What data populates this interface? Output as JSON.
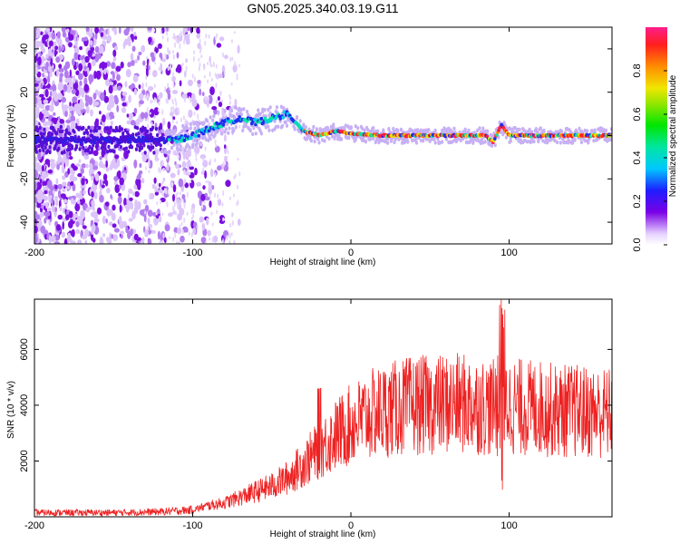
{
  "title": "GN05.2025.340.03.19.G11",
  "chart_data": [
    {
      "type": "heatmap",
      "xlabel": "Height of straight line (km)",
      "ylabel": "Frequency (Hz)",
      "xlim": [
        -200,
        165
      ],
      "ylim": [
        -50,
        50
      ],
      "xticks": [
        -200,
        -100,
        0,
        100
      ],
      "xtick_labels": [
        "-200",
        "-100",
        "0",
        "100"
      ],
      "yticks": [
        40,
        20,
        0,
        -20,
        -40
      ],
      "ytick_labels": [
        "40",
        "20",
        "0",
        "-20",
        "-40"
      ],
      "ridge": [
        {
          "x": -110,
          "y": -2
        },
        {
          "x": -100,
          "y": 0
        },
        {
          "x": -90,
          "y": 3
        },
        {
          "x": -80,
          "y": 6
        },
        {
          "x": -70,
          "y": 8
        },
        {
          "x": -60,
          "y": 6
        },
        {
          "x": -50,
          "y": 8
        },
        {
          "x": -40,
          "y": 10
        },
        {
          "x": -35,
          "y": 6
        },
        {
          "x": -30,
          "y": 2
        },
        {
          "x": -20,
          "y": 0
        },
        {
          "x": -10,
          "y": 2
        },
        {
          "x": 0,
          "y": 1
        },
        {
          "x": 20,
          "y": 0
        },
        {
          "x": 50,
          "y": 0
        },
        {
          "x": 85,
          "y": 0
        },
        {
          "x": 90,
          "y": -3
        },
        {
          "x": 95,
          "y": 5
        },
        {
          "x": 100,
          "y": 0
        },
        {
          "x": 165,
          "y": 0
        }
      ],
      "colorbar": {
        "label": "Normalized spectral amplitude",
        "range": [
          0,
          1
        ],
        "ticks": [
          0.0,
          0.2,
          0.4,
          0.6,
          0.8
        ],
        "tick_labels": [
          "0.0",
          "0.2",
          "0.4",
          "0.6",
          "0.8"
        ]
      }
    },
    {
      "type": "line",
      "xlabel": "Height of straight line (km)",
      "ylabel": "SNR (10 * v/v)",
      "xlim": [
        -200,
        165
      ],
      "ylim": [
        0,
        7800
      ],
      "xticks": [
        -200,
        -100,
        0,
        100
      ],
      "xtick_labels": [
        "-200",
        "-100",
        "0",
        "100"
      ],
      "yticks": [
        2000,
        4000,
        6000
      ],
      "ytick_labels": [
        "2000",
        "4000",
        "6000"
      ],
      "color": "#ee2222",
      "series": [
        {
          "name": "SNR",
          "x": [
            -200,
            -150,
            -120,
            -100,
            -90,
            -80,
            -70,
            -60,
            -50,
            -40,
            -30,
            -20,
            -10,
            0,
            10,
            20,
            30,
            40,
            50,
            60,
            70,
            80,
            90,
            95,
            100,
            110,
            120,
            130,
            140,
            150,
            165
          ],
          "values": [
            150,
            150,
            180,
            250,
            400,
            500,
            700,
            900,
            1100,
            1400,
            1900,
            2400,
            2900,
            3300,
            3600,
            3800,
            3900,
            4000,
            4000,
            4050,
            4050,
            4000,
            3900,
            4300,
            4000,
            3900,
            3900,
            3800,
            3800,
            3750,
            3700
          ]
        }
      ]
    }
  ]
}
